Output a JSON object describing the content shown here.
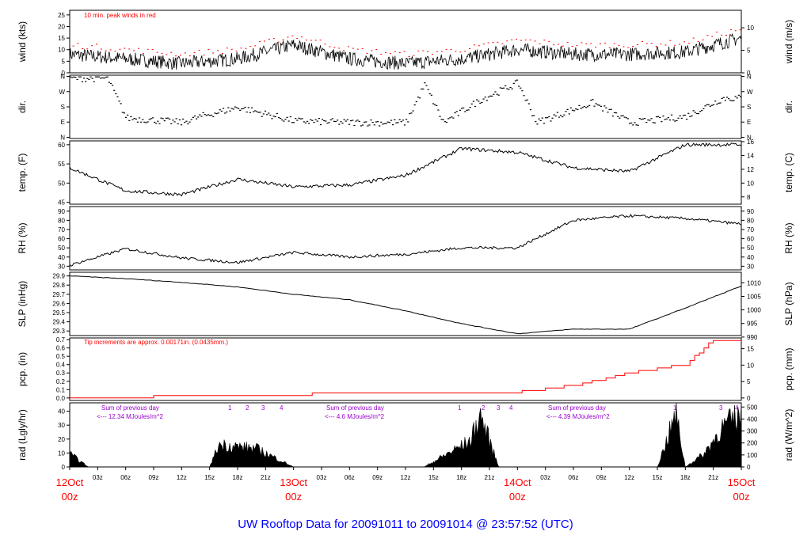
{
  "footer_title": "UW Rooftop Data for 20091011  to  20091014 @ 23:57:52  (UTC)",
  "colors": {
    "data": "#000000",
    "peak": "#ff0000",
    "precip": "#ff0000",
    "note": "#ff0000",
    "solar_note": "#9900cc",
    "date": "#ff0000",
    "footer": "#0000ff"
  },
  "time_axis": {
    "hour_ticks": [
      "03z",
      "06z",
      "09z",
      "12z",
      "15z",
      "18z",
      "21z"
    ],
    "days": [
      {
        "day": "12Oct",
        "hour": "00z"
      },
      {
        "day": "13Oct",
        "hour": "00z"
      },
      {
        "day": "14Oct",
        "hour": "00z"
      },
      {
        "day": "15Oct",
        "hour": "00z"
      }
    ]
  },
  "panels": {
    "wind": {
      "left_label": "wind (kts)",
      "right_label": "wind (m/s)",
      "note": "10 min. peak winds in red",
      "left_ticks": [
        "0",
        "5",
        "10",
        "15",
        "20",
        "25"
      ],
      "right_ticks": [
        "0",
        "5",
        "10"
      ]
    },
    "dir": {
      "left_label": "dir.",
      "right_label": "dir.",
      "left_ticks": [
        "N",
        "E",
        "S",
        "W",
        "N"
      ],
      "right_ticks": [
        "N",
        "E",
        "S",
        "W",
        "N"
      ]
    },
    "temp": {
      "left_label": "temp. (F)",
      "right_label": "temp. (C)",
      "left_ticks": [
        "45",
        "50",
        "55",
        "60"
      ],
      "right_ticks": [
        "8",
        "10",
        "12",
        "14",
        "16"
      ]
    },
    "rh": {
      "left_label": "RH (%)",
      "right_label": "RH (%)",
      "left_ticks": [
        "30",
        "40",
        "50",
        "60",
        "70",
        "80",
        "90"
      ],
      "right_ticks": [
        "30",
        "40",
        "50",
        "60",
        "70",
        "80",
        "90"
      ]
    },
    "slp": {
      "left_label": "SLP (inHg)",
      "right_label": "SLP (hPa)",
      "left_ticks": [
        "29.3",
        "29.4",
        "29.5",
        "29.6",
        "29.7",
        "29.8",
        "29.9"
      ],
      "right_ticks": [
        "990",
        "995",
        "1000",
        "1005",
        "1010"
      ]
    },
    "pcp": {
      "left_label": "pcp. (in)",
      "right_label": "pcp. (mm)",
      "note": "Tip increments are approx. 0.00171in. (0.0435mm.)",
      "left_ticks": [
        "0.0",
        "0.1",
        "0.2",
        "0.3",
        "0.4",
        "0.5",
        "0.6",
        "0.7"
      ],
      "right_ticks": [
        "0",
        "5",
        "10",
        "15"
      ]
    },
    "rad": {
      "left_label": "rad (Lgly/hr)",
      "right_label": "rad (W/m^2)",
      "left_ticks": [
        "0",
        "10",
        "20",
        "30",
        "40"
      ],
      "right_ticks": [
        "0",
        "100",
        "200",
        "300",
        "400",
        "500"
      ],
      "day_sums": [
        {
          "title": "Sum of previous day",
          "value": "<--- 12.34 MJoules/m^2"
        },
        {
          "title": "Sum of previous day",
          "value": "<--- 4.6 MJoules/m^2"
        },
        {
          "title": "Sum of previous day",
          "value": "<--- 4.39 MJoules/m^2"
        }
      ],
      "markers": [
        "1",
        "2",
        "3",
        "4",
        "1",
        "2",
        "3",
        "4",
        "1",
        "3",
        "4"
      ]
    }
  },
  "chart_data": [
    {
      "type": "line",
      "ylabel": "wind (kts)",
      "y2label": "wind (m/s)",
      "ylim": [
        0,
        27
      ],
      "x_hours": [
        0,
        6,
        12,
        18,
        24,
        30,
        36,
        42,
        48,
        54,
        60,
        66,
        72
      ],
      "series": [
        {
          "values": [
            8,
            6,
            4,
            6,
            12,
            6,
            4,
            6,
            10,
            8,
            8,
            9,
            15
          ]
        }
      ]
    },
    {
      "type": "scatter",
      "ylabel": "dir.",
      "y_categories": [
        "N",
        "E",
        "S",
        "W",
        "N"
      ]
    },
    {
      "type": "line",
      "ylabel": "temp. (F)",
      "y2label": "temp. (C)",
      "ylim": [
        45,
        61
      ],
      "x_hours": [
        0,
        6,
        12,
        18,
        24,
        30,
        36,
        42,
        48,
        54,
        60,
        66,
        72
      ],
      "series": [
        {
          "values": [
            54,
            48,
            47,
            51,
            49,
            49.5,
            52,
            59,
            58,
            54,
            53,
            60,
            60
          ]
        }
      ]
    },
    {
      "type": "line",
      "ylabel": "RH (%)",
      "ylim": [
        28,
        95
      ],
      "x_hours": [
        0,
        6,
        12,
        18,
        24,
        30,
        36,
        42,
        48,
        54,
        60,
        66,
        72
      ],
      "series": [
        {
          "values": [
            31,
            49,
            39,
            34,
            45,
            40,
            43,
            50,
            50,
            80,
            85,
            82,
            76
          ]
        }
      ]
    },
    {
      "type": "line",
      "ylabel": "SLP (inHg)",
      "y2label": "SLP (hPa)",
      "ylim": [
        29.25,
        29.95
      ],
      "x_hours": [
        0,
        6,
        12,
        18,
        24,
        30,
        36,
        42,
        48,
        54,
        60,
        66,
        72
      ],
      "series": [
        {
          "values": [
            29.9,
            29.87,
            29.83,
            29.78,
            29.7,
            29.64,
            29.52,
            29.38,
            29.27,
            29.32,
            29.32,
            29.55,
            29.79
          ]
        }
      ]
    },
    {
      "type": "line",
      "ylabel": "pcp. (in)",
      "y2label": "pcp. (mm)",
      "ylim": [
        -0.05,
        0.72
      ],
      "x_hours": [
        0,
        40,
        48,
        54,
        60,
        66,
        69,
        72
      ],
      "series": [
        {
          "values": [
            0,
            0.07,
            0.07,
            0.15,
            0.3,
            0.4,
            0.7,
            0.7
          ]
        }
      ]
    },
    {
      "type": "area",
      "ylabel": "rad (Lgly/hr)",
      "y2label": "rad (W/m^2)",
      "ylim": [
        0,
        45
      ],
      "x_hours": [
        0,
        2,
        15,
        16,
        20,
        24,
        38,
        43,
        44,
        46,
        63,
        65,
        66,
        68,
        70,
        72
      ],
      "series": [
        {
          "values": [
            10,
            0,
            0,
            17,
            14,
            0,
            0,
            20,
            40,
            0,
            0,
            40,
            0,
            10,
            30,
            40
          ]
        }
      ]
    }
  ]
}
